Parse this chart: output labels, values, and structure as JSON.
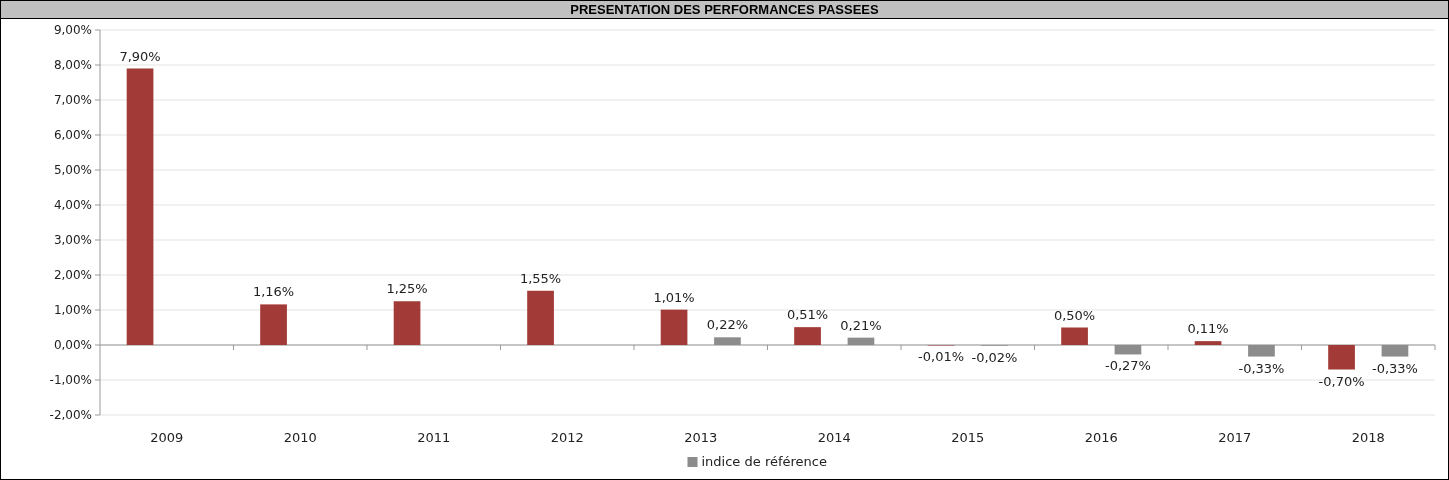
{
  "chart_data": {
    "type": "bar",
    "title": "PRESENTATION DES PERFORMANCES PASSEES",
    "categories": [
      "2009",
      "2010",
      "2011",
      "2012",
      "2013",
      "2014",
      "2015",
      "2016",
      "2017",
      "2018"
    ],
    "series": [
      {
        "color": "#a23b37",
        "values": [
          7.9,
          1.16,
          1.25,
          1.55,
          1.01,
          0.51,
          -0.01,
          0.5,
          0.11,
          -0.7
        ],
        "value_labels": [
          "7,90%",
          "1,16%",
          "1,25%",
          "1,55%",
          "1,01%",
          "0,51%",
          "-0,01%",
          "0,50%",
          "0,11%",
          "-0,70%"
        ]
      },
      {
        "name": "indice de référence",
        "color": "#8c8c8c",
        "values": [
          null,
          null,
          null,
          null,
          0.22,
          0.21,
          -0.02,
          -0.27,
          -0.33,
          -0.33
        ],
        "value_labels": [
          null,
          null,
          null,
          null,
          "0,22%",
          "0,21%",
          "-0,02%",
          "-0,27%",
          "-0,33%",
          "-0,33%"
        ]
      }
    ],
    "ylim": [
      -2,
      9
    ],
    "yticks": [
      {
        "value": -2,
        "label": "-2,00%"
      },
      {
        "value": -1,
        "label": "-1,00%"
      },
      {
        "value": 0,
        "label": "0,00%"
      },
      {
        "value": 1,
        "label": "1,00%"
      },
      {
        "value": 2,
        "label": "2,00%"
      },
      {
        "value": 3,
        "label": "3,00%"
      },
      {
        "value": 4,
        "label": "4,00%"
      },
      {
        "value": 5,
        "label": "5,00%"
      },
      {
        "value": 6,
        "label": "6,00%"
      },
      {
        "value": 7,
        "label": "7,00%"
      },
      {
        "value": 8,
        "label": "8,00%"
      },
      {
        "value": 9,
        "label": "9,00%"
      }
    ],
    "grid": "y",
    "legend": "bottom"
  }
}
